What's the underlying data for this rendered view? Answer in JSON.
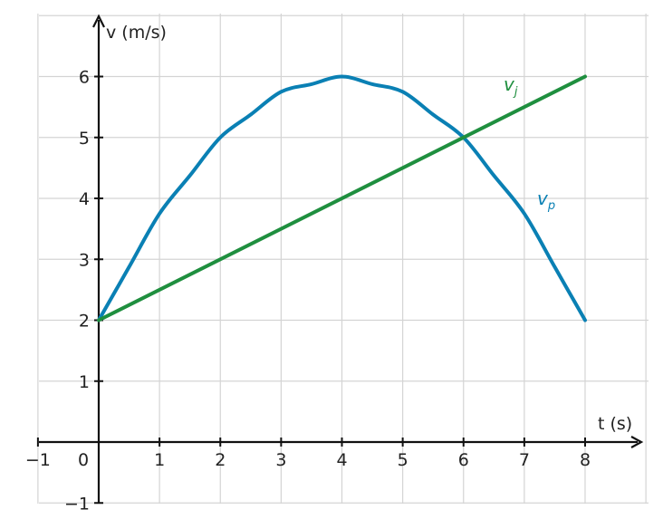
{
  "chart_data": {
    "type": "line",
    "xlabel": "t (s)",
    "ylabel": "v (m/s)",
    "xlim": [
      -1,
      9
    ],
    "ylim": [
      -1,
      7
    ],
    "x_ticks": [
      -1,
      0,
      1,
      2,
      3,
      4,
      5,
      6,
      7,
      8
    ],
    "y_ticks": [
      -1,
      1,
      2,
      3,
      4,
      5,
      6
    ],
    "origin_label": "0",
    "grid": true,
    "series": [
      {
        "name": "v_p",
        "label_main": "v",
        "label_sub": "p",
        "color": "#0a80b4",
        "x": [
          0,
          0.5,
          1,
          1.5,
          2,
          2.5,
          3,
          3.5,
          4,
          4.5,
          5,
          5.5,
          6,
          6.5,
          7,
          7.5,
          8
        ],
        "y": [
          2,
          2.875,
          3.75,
          4.375,
          5,
          5.375,
          5.75,
          5.875,
          6,
          5.875,
          5.75,
          5.375,
          5,
          4.375,
          3.75,
          2.875,
          2
        ]
      },
      {
        "name": "v_j",
        "label_main": "v",
        "label_sub": "j",
        "color": "#1f8f3f",
        "x": [
          0,
          8
        ],
        "y": [
          2,
          6
        ]
      }
    ]
  }
}
